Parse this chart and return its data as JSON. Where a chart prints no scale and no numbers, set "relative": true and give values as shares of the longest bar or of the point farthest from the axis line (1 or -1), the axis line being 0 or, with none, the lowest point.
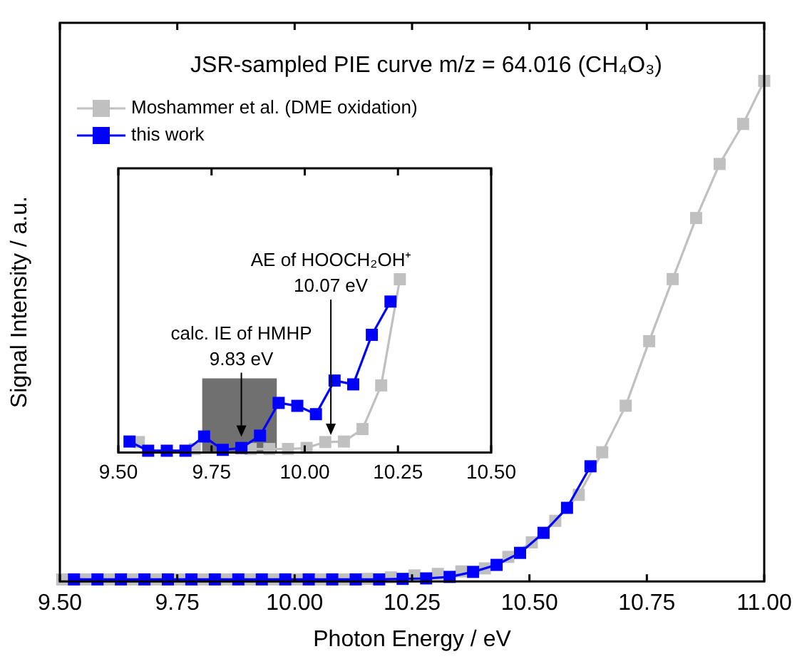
{
  "chart_data": [
    {
      "type": "line",
      "title": "JSR-sampled PIE curve m/z = 64.016 (CH₄O₃)",
      "xlabel": "Photon Energy / eV",
      "ylabel": "Signal Intensity / a.u.",
      "relative": true,
      "marker": "square",
      "legend": "top left",
      "tick_labels": "x",
      "xlim": [
        9.5,
        11.0
      ],
      "xticks": [
        {
          "value": 9.5,
          "label": "9.50"
        },
        {
          "value": 9.75,
          "label": "9.75"
        },
        {
          "value": 10.0,
          "label": "10.00"
        },
        {
          "value": 10.25,
          "label": "10.25"
        },
        {
          "value": 10.5,
          "label": "10.50"
        },
        {
          "value": 10.75,
          "label": "10.75"
        },
        {
          "value": 11.0,
          "label": "11.00"
        }
      ],
      "series": [
        {
          "name": "Moshammer et al. (DME oxidation)",
          "color": "#c0c0c0",
          "x": [
            9.505,
            9.555,
            9.605,
            9.655,
            9.705,
            9.755,
            9.805,
            9.855,
            9.905,
            9.955,
            10.005,
            10.055,
            10.105,
            10.155,
            10.205,
            10.255,
            10.305,
            10.355,
            10.405,
            10.455,
            10.505,
            10.555,
            10.605,
            10.655,
            10.705,
            10.755,
            10.805,
            10.855,
            10.905,
            10.955,
            11.0
          ],
          "values": [
            0.004,
            0.004,
            0.004,
            0.004,
            0.004,
            0.004,
            0.004,
            0.004,
            0.004,
            0.004,
            0.004,
            0.004,
            0.004,
            0.005,
            0.008,
            0.012,
            0.015,
            0.02,
            0.026,
            0.049,
            0.078,
            0.121,
            0.173,
            0.258,
            0.351,
            0.48,
            0.604,
            0.726,
            0.834,
            0.914,
            1.0
          ]
        },
        {
          "name": "this work",
          "color": "#0000ff",
          "x": [
            9.53,
            9.58,
            9.63,
            9.68,
            9.73,
            9.78,
            9.83,
            9.88,
            9.93,
            9.98,
            10.03,
            10.08,
            10.13,
            10.18,
            10.23,
            10.28,
            10.33,
            10.38,
            10.43,
            10.48,
            10.53,
            10.58,
            10.63
          ],
          "values": [
            0.004,
            0.004,
            0.004,
            0.004,
            0.004,
            0.004,
            0.004,
            0.004,
            0.004,
            0.004,
            0.004,
            0.004,
            0.004,
            0.004,
            0.005,
            0.006,
            0.009,
            0.019,
            0.033,
            0.057,
            0.097,
            0.147,
            0.23
          ]
        }
      ]
    },
    {
      "type": "line",
      "relative": true,
      "marker": "square",
      "tick_labels": "x",
      "xlim": [
        9.5,
        10.5
      ],
      "xticks": [
        {
          "value": 9.5,
          "label": "9.50"
        },
        {
          "value": 9.75,
          "label": "9.75"
        },
        {
          "value": 10.0,
          "label": "10.00"
        },
        {
          "value": 10.25,
          "label": "10.25"
        },
        {
          "value": 10.5,
          "label": "10.50"
        }
      ],
      "bands": [
        {
          "axis": "x",
          "from": 9.725,
          "to": 9.925,
          "color": "#707070"
        }
      ],
      "annotations": [
        {
          "text": "calc. IE of HMHP\n9.83 eV",
          "x": 9.83,
          "y": 0.09
        },
        {
          "text": "AE of HOOCH₂OH⁺\n10.07 eV",
          "x": 10.07,
          "y": 0.1
        }
      ],
      "series": [
        {
          "color": "#c0c0c0",
          "x": [
            9.555,
            9.605,
            9.655,
            9.705,
            9.755,
            9.805,
            9.855,
            9.905,
            9.955,
            10.005,
            10.055,
            10.105,
            10.155,
            10.205,
            10.255
          ],
          "values": [
            0.06,
            null,
            null,
            0.02,
            null,
            null,
            0.02,
            0.02,
            0.02,
            0.026,
            0.06,
            0.063,
            0.135,
            0.387,
            1.0
          ]
        },
        {
          "color": "#0000ff",
          "x": [
            9.53,
            9.58,
            9.63,
            9.68,
            9.73,
            9.78,
            9.83,
            9.88,
            9.93,
            9.98,
            10.03,
            10.08,
            10.13,
            10.18,
            10.23
          ],
          "values": [
            0.063,
            0.01,
            0.01,
            0.01,
            0.092,
            0.015,
            0.026,
            0.097,
            0.286,
            0.269,
            0.221,
            0.415,
            0.393,
            0.679,
            0.871
          ]
        }
      ]
    }
  ]
}
